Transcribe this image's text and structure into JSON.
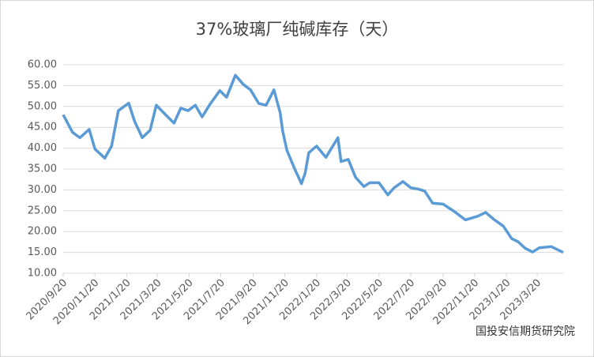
{
  "chart_data": {
    "type": "line",
    "title": "37%玻璃厂纯碱库存（天）",
    "x": [
      "2020/9/20",
      "2020/10/8",
      "2020/10/22",
      "2020/11/9",
      "2020/11/20",
      "2020/12/9",
      "2020/12/22",
      "2021/1/4",
      "2021/1/24",
      "2021/2/4",
      "2021/2/19",
      "2021/3/6",
      "2021/3/18",
      "2021/4/5",
      "2021/4/21",
      "2021/5/4",
      "2021/5/18",
      "2021/6/1",
      "2021/6/14",
      "2021/6/29",
      "2021/7/18",
      "2021/7/31",
      "2021/8/17",
      "2021/9/1",
      "2021/9/15",
      "2021/10/1",
      "2021/10/15",
      "2021/10/30",
      "2021/11/11",
      "2021/11/16",
      "2021/11/24",
      "2021/12/9",
      "2021/12/22",
      "2021/12/29",
      "2022/1/5",
      "2022/1/20",
      "2022/2/7",
      "2022/3/2",
      "2022/3/8",
      "2022/3/22",
      "2022/4/5",
      "2022/4/21",
      "2022/5/2",
      "2022/5/20",
      "2022/6/6",
      "2022/6/18",
      "2022/7/5",
      "2022/7/20",
      "2022/8/3",
      "2022/8/16",
      "2022/8/31",
      "2022/9/20",
      "2022/10/13",
      "2022/11/2",
      "2022/11/26",
      "2022/12/11",
      "2022/12/26",
      "2023/1/14",
      "2023/1/30",
      "2023/2/11",
      "2023/2/25",
      "2023/3/11",
      "2023/3/24",
      "2023/4/16",
      "2023/5/9"
    ],
    "series": [
      {
        "name": "37%玻璃厂纯碱库存",
        "color": "#5b9bd5",
        "values": [
          48.0,
          43.8,
          42.5,
          44.5,
          39.8,
          37.6,
          40.5,
          49.0,
          50.8,
          46.5,
          42.5,
          44.3,
          50.3,
          48.0,
          46.0,
          49.6,
          49.0,
          50.3,
          47.5,
          50.5,
          53.8,
          52.2,
          57.5,
          55.3,
          54.0,
          50.7,
          50.3,
          54.0,
          48.5,
          44.0,
          39.5,
          35.0,
          31.5,
          34.0,
          38.9,
          40.5,
          37.8,
          42.5,
          36.8,
          37.3,
          33.0,
          30.8,
          31.7,
          31.7,
          28.8,
          30.5,
          32.0,
          30.5,
          30.2,
          29.7,
          26.8,
          26.6,
          24.7,
          22.8,
          23.7,
          24.6,
          23.0,
          21.3,
          18.3,
          17.6,
          16.0,
          15.1,
          16.1,
          16.4,
          15.0
        ]
      }
    ],
    "xlim": [
      "2020/9/20",
      "2023/5/9"
    ],
    "xticks": [
      "2020/9/20",
      "2020/11/20",
      "2021/1/20",
      "2021/3/20",
      "2021/5/20",
      "2021/7/20",
      "2021/9/20",
      "2021/11/20",
      "2022/1/20",
      "2022/3/20",
      "2022/5/20",
      "2022/7/20",
      "2022/9/20",
      "2022/11/20",
      "2023/1/20",
      "2023/3/20"
    ],
    "ylim": [
      10,
      60
    ],
    "yticks": [
      {
        "value": 10,
        "label": "10.00"
      },
      {
        "value": 15,
        "label": "15.00"
      },
      {
        "value": 20,
        "label": "20.00"
      },
      {
        "value": 25,
        "label": "25.00"
      },
      {
        "value": 30,
        "label": "30.00"
      },
      {
        "value": 35,
        "label": "35.00"
      },
      {
        "value": 40,
        "label": "40.00"
      },
      {
        "value": 45,
        "label": "45.00"
      },
      {
        "value": 50,
        "label": "50.00"
      },
      {
        "value": 55,
        "label": "55.00"
      },
      {
        "value": 60,
        "label": "60.00"
      }
    ],
    "grid": true,
    "watermark": "国投安信期货研究院"
  }
}
